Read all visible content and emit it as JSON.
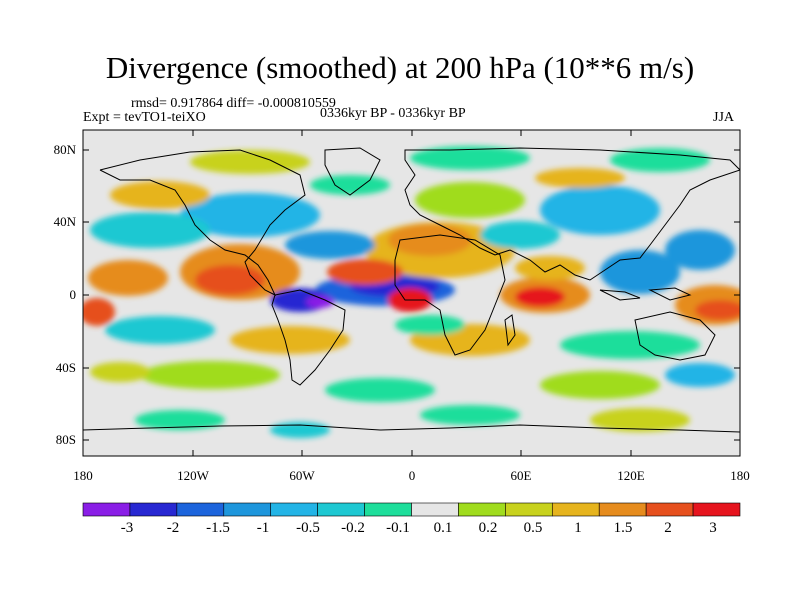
{
  "title": "Divergence (smoothed) at 200 hPa (10**6 m/s)",
  "stats": "rmsd= 0.917864 diff= -0.000810559",
  "experiment": "Expt = tevTO1-teiXO",
  "period": "0336kyr BP - 0336kyr BP",
  "season": "JJA",
  "axes": {
    "y_ticks": [
      "80N",
      "40N",
      "0",
      "40S",
      "80S"
    ],
    "x_ticks": [
      "180",
      "120W",
      "60W",
      "0",
      "60E",
      "120E",
      "180"
    ]
  },
  "colorbar": {
    "labels": [
      "-3",
      "-2",
      "-1.5",
      "-1",
      "-0.5",
      "-0.2",
      "-0.1",
      "0.1",
      "0.2",
      "0.5",
      "1",
      "1.5",
      "2",
      "3"
    ],
    "colors": [
      "#8a1ee6",
      "#2828d2",
      "#1c64dc",
      "#1e96dc",
      "#23b4e6",
      "#1ec8d2",
      "#1ede9b",
      "#e6e6e6",
      "#a0dc1e",
      "#c8d21e",
      "#e6b41e",
      "#e68c1e",
      "#e6501e",
      "#e6141e"
    ]
  },
  "legend_colors": {
    "background": "#e6e6e6",
    "coast": "#000000"
  }
}
